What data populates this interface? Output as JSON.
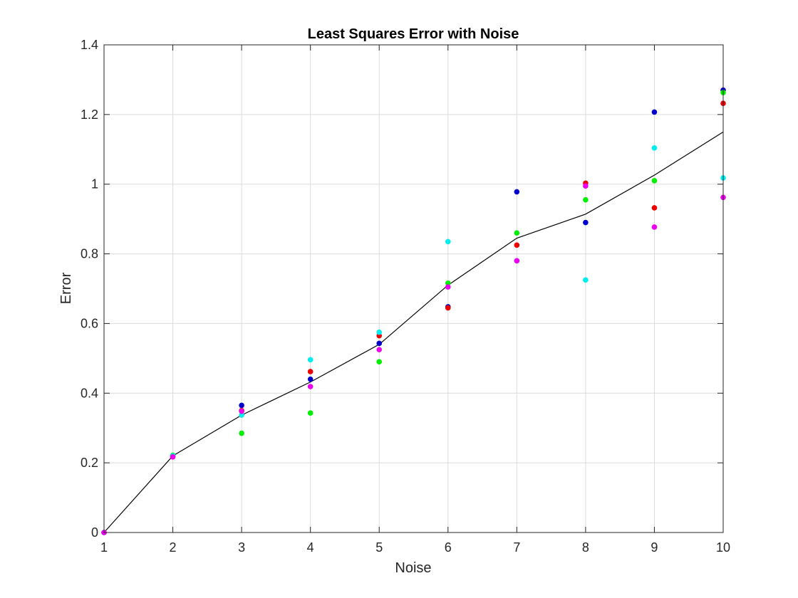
{
  "chart_data": {
    "type": "scatter",
    "title": "Least Squares Error with Noise",
    "xlabel": "Noise",
    "ylabel": "Error",
    "xlim": [
      1,
      10
    ],
    "ylim": [
      0,
      1.4
    ],
    "x_ticks": [
      1,
      2,
      3,
      4,
      5,
      6,
      7,
      8,
      9,
      10
    ],
    "y_ticks": [
      0,
      0.2,
      0.4,
      0.6,
      0.8,
      1,
      1.2,
      1.4
    ],
    "y_tick_labels": [
      "0",
      "0.2",
      "0.4",
      "0.6",
      "0.8",
      "1",
      "1.2",
      "1.4"
    ],
    "grid": true,
    "x": [
      1,
      2,
      3,
      4,
      5,
      6,
      7,
      8,
      9,
      10
    ],
    "series": [
      {
        "color": "#0000cc",
        "marker": "dot",
        "values": [
          0,
          0.22,
          0.365,
          0.44,
          0.543,
          0.648,
          0.978,
          0.89,
          1.207,
          1.27
        ]
      },
      {
        "color": "#ee0000",
        "marker": "dot",
        "values": [
          0,
          0.22,
          0.35,
          0.462,
          0.565,
          0.645,
          0.825,
          1.003,
          0.932,
          1.232
        ]
      },
      {
        "color": "#00ee00",
        "marker": "dot",
        "values": [
          0,
          0.222,
          0.285,
          0.343,
          0.49,
          0.716,
          0.86,
          0.955,
          1.01,
          1.263
        ]
      },
      {
        "color": "#00eeee",
        "marker": "dot",
        "values": [
          0,
          0.22,
          0.337,
          0.496,
          0.575,
          0.835,
          0.78,
          0.725,
          1.104,
          1.018
        ]
      },
      {
        "color": "#ee00ee",
        "marker": "dot",
        "values": [
          0,
          0.217,
          0.348,
          0.419,
          0.525,
          0.705,
          0.78,
          0.995,
          0.877,
          0.962
        ]
      },
      {
        "color": "#000000",
        "marker": "line",
        "values": [
          0,
          0.22,
          0.337,
          0.432,
          0.54,
          0.71,
          0.845,
          0.914,
          1.026,
          1.15
        ]
      }
    ]
  }
}
